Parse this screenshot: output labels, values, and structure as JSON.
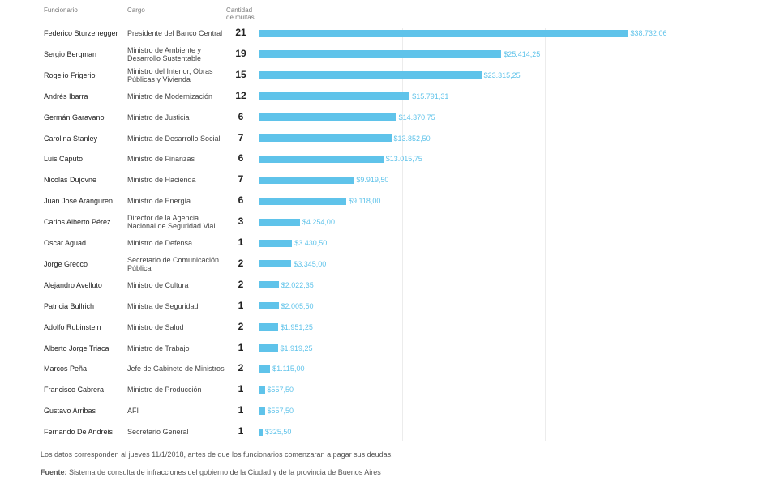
{
  "chart_data": {
    "type": "bar",
    "orientation": "horizontal",
    "column_headers": [
      "Funcionario",
      "Cargo",
      "Cantidad de multas"
    ],
    "categories": [
      "Federico Sturzenegger",
      "Sergio Bergman",
      "Rogelio Frigerio",
      "Andrés Ibarra",
      "Germán Garavano",
      "Carolina Stanley",
      "Luis Caputo",
      "Nicolás Dujovne",
      "Juan José Aranguren",
      "Carlos Alberto Pérez",
      "Oscar Aguad",
      "Jorge Grecco",
      "Alejandro Avelluto",
      "Patricia Bullrich",
      "Adolfo Rubinstein",
      "Alberto Jorge Triaca",
      "Marcos Peña",
      "Francisco Cabrera",
      "Gustavo Arribas",
      "Fernando De Andreis"
    ],
    "cargos": [
      "Presidente del Banco Central",
      "Ministro de Ambiente y Desarrollo Sustentable",
      "Ministro del Interior, Obras Públicas y Vivienda",
      "Ministro de Modernización",
      "Ministro de Justicia",
      "Ministra de Desarrollo Social",
      "Ministro de Finanzas",
      "Ministro de Hacienda",
      "Ministro de Energía",
      "Director de la Agencia Nacional de Seguridad Vial",
      "Ministro de Defensa",
      "Secretario de Comunicación Pública",
      "Ministro de Cultura",
      "Ministra de Seguridad",
      "Ministro de Salud",
      "Ministro de Trabajo",
      "Jefe de Gabinete de Ministros",
      "Ministro de Producción",
      "AFI",
      "Secretario General"
    ],
    "multas": [
      21,
      19,
      15,
      12,
      6,
      7,
      6,
      7,
      6,
      3,
      1,
      2,
      2,
      1,
      2,
      1,
      2,
      1,
      1,
      1
    ],
    "values": [
      38732.06,
      25414.25,
      23315.25,
      15791.31,
      14370.75,
      13852.5,
      13015.75,
      9919.5,
      9118.0,
      4254.0,
      3430.5,
      3345.0,
      2022.35,
      2005.5,
      1951.25,
      1919.25,
      1115.0,
      557.5,
      557.5,
      325.5
    ],
    "value_labels": [
      "$38.732,06",
      "$25.414,25",
      "$23.315,25",
      "$15.791,31",
      "$14.370,75",
      "$13.852,50",
      "$13.015,75",
      "$9.919,50",
      "$9.118,00",
      "$4.254,00",
      "$3.430,50",
      "$3.345,00",
      "$2.022,35",
      "$2.005,50",
      "$1.951,25",
      "$1.919,25",
      "$1.115,00",
      "$557,50",
      "$557,50",
      "$325,50"
    ],
    "color": "#5fc3ea",
    "xlim": [
      0,
      45000
    ],
    "xticks": [
      0,
      15000,
      30000,
      45000
    ],
    "grid": true,
    "note": "Los datos corresponden al jueves 11/1/2018, antes de que los funcionarios comenzaran a pagar sus deudas.",
    "source_label": "Fuente:",
    "source": "Sistema de consulta de infracciones del gobierno de la Ciudad y de la provincia de Buenos Aires"
  }
}
